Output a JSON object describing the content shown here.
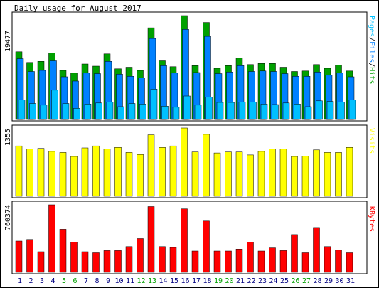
{
  "title": "Daily usage for August 2017",
  "colors": {
    "hits": "#00a000",
    "files": "#0080ff",
    "pages": "#00c0ff",
    "visits": "#ffff00",
    "kbytes": "#ff0000",
    "weekend": "#00a000",
    "weekday": "#000080",
    "frame": "#000000",
    "panel_bg": "#ffffff"
  },
  "axis_labels": {
    "pages_word": "Pages",
    "files_word": "Files",
    "hits_word": "Hits",
    "visits_word": "Visits",
    "kbytes_word": "KBytes",
    "separator": "/"
  },
  "chart_data": [
    {
      "type": "bar",
      "panel": "hits-files-pages",
      "ymax_label": "19477",
      "ylim": [
        0,
        19477
      ],
      "categories": [
        "1",
        "2",
        "3",
        "4",
        "5",
        "6",
        "7",
        "8",
        "9",
        "10",
        "11",
        "12",
        "13",
        "14",
        "15",
        "16",
        "17",
        "18",
        "19",
        "20",
        "21",
        "22",
        "23",
        "24",
        "25",
        "26",
        "27",
        "28",
        "29",
        "30",
        "31"
      ],
      "weekend_days": [
        "5",
        "6",
        "12",
        "13",
        "19",
        "20",
        "26",
        "27"
      ],
      "series": [
        {
          "name": "Hits",
          "values": [
            12700,
            10700,
            10900,
            12500,
            9200,
            8700,
            10400,
            10000,
            12300,
            9500,
            9800,
            9200,
            17200,
            11000,
            9900,
            19477,
            10100,
            18200,
            9600,
            10100,
            11500,
            10300,
            10500,
            10500,
            9800,
            9000,
            9100,
            10300,
            9600,
            10200,
            9100
          ]
        },
        {
          "name": "Files",
          "values": [
            11400,
            9000,
            9200,
            11000,
            8000,
            7200,
            8700,
            8600,
            10900,
            8500,
            8100,
            7800,
            15200,
            10100,
            8700,
            16900,
            8800,
            15600,
            8600,
            8900,
            10100,
            9000,
            9100,
            9000,
            8600,
            8100,
            8100,
            8900,
            8300,
            8700,
            8000
          ]
        },
        {
          "name": "Pages",
          "values": [
            3700,
            3000,
            2700,
            5500,
            3000,
            2100,
            2900,
            3100,
            3300,
            2400,
            3000,
            2900,
            5700,
            2500,
            2300,
            4400,
            2700,
            4200,
            3200,
            3200,
            3300,
            3300,
            2900,
            2800,
            3100,
            2900,
            2400,
            3500,
            3400,
            3300,
            3700
          ]
        }
      ]
    },
    {
      "type": "bar",
      "panel": "visits",
      "ymax_label": "1355",
      "ylim": [
        0,
        1355
      ],
      "categories": [
        "1",
        "2",
        "3",
        "4",
        "5",
        "6",
        "7",
        "8",
        "9",
        "10",
        "11",
        "12",
        "13",
        "14",
        "15",
        "16",
        "17",
        "18",
        "19",
        "20",
        "21",
        "22",
        "23",
        "24",
        "25",
        "26",
        "27",
        "28",
        "29",
        "30",
        "31"
      ],
      "series": [
        {
          "name": "Visits",
          "values": [
            1000,
            940,
            950,
            890,
            870,
            790,
            960,
            1000,
            940,
            970,
            870,
            830,
            1220,
            970,
            1000,
            1355,
            880,
            1230,
            860,
            880,
            880,
            820,
            890,
            940,
            940,
            790,
            800,
            920,
            870,
            870,
            970
          ]
        }
      ]
    },
    {
      "type": "bar",
      "panel": "kbytes",
      "ymax_label": "760374",
      "ylim": [
        0,
        760374
      ],
      "categories": [
        "1",
        "2",
        "3",
        "4",
        "5",
        "6",
        "7",
        "8",
        "9",
        "10",
        "11",
        "12",
        "13",
        "14",
        "15",
        "16",
        "17",
        "18",
        "19",
        "20",
        "21",
        "22",
        "23",
        "24",
        "25",
        "26",
        "27",
        "28",
        "29",
        "30",
        "31"
      ],
      "series": [
        {
          "name": "KBytes",
          "values": [
            352000,
            370000,
            232000,
            760374,
            485000,
            340000,
            232000,
            220000,
            245000,
            245000,
            290000,
            380000,
            740000,
            290000,
            280000,
            715000,
            240000,
            578000,
            240000,
            240000,
            262000,
            340000,
            240000,
            275000,
            245000,
            425000,
            220000,
            505000,
            290000,
            250000,
            220000
          ]
        }
      ]
    }
  ]
}
